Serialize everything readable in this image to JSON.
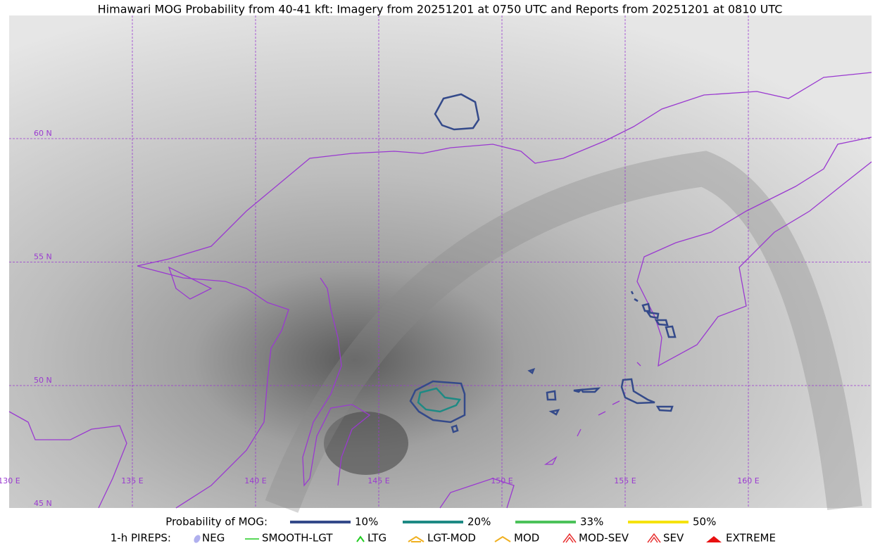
{
  "title": "Himawari MOG Probability from 40-41 kft: Imagery from 20251201 at 0750 UTC and Reports from 20251201 at 0810 UTC",
  "map": {
    "lat_labels": [
      "60 N",
      "55 N",
      "50 N",
      "45 N"
    ],
    "lon_labels": [
      "130 E",
      "135 E",
      "140 E",
      "145 E",
      "150 E",
      "155 E",
      "160 E"
    ]
  },
  "legend": {
    "mog_title": "Probability of MOG:",
    "mog_levels": [
      {
        "label": "10%",
        "color": "#344a8a"
      },
      {
        "label": "20%",
        "color": "#1e8a84"
      },
      {
        "label": "33%",
        "color": "#4cc25a"
      },
      {
        "label": "50%",
        "color": "#f5e20f"
      }
    ],
    "pirep_title": "1-h PIREPS:",
    "pireps": [
      {
        "label": "NEG",
        "color": "#b0b0ee"
      },
      {
        "label": "SMOOTH-LGT",
        "color": "#22cc22"
      },
      {
        "label": "LTG",
        "color": "#22cc22"
      },
      {
        "label": "LGT-MOD",
        "color": "#f0b020"
      },
      {
        "label": "MOD",
        "color": "#f0b020"
      },
      {
        "label": "MOD-SEV",
        "color": "#e83030"
      },
      {
        "label": "SEV",
        "color": "#e83030"
      },
      {
        "label": "EXTREME",
        "color": "#e81010"
      }
    ]
  }
}
